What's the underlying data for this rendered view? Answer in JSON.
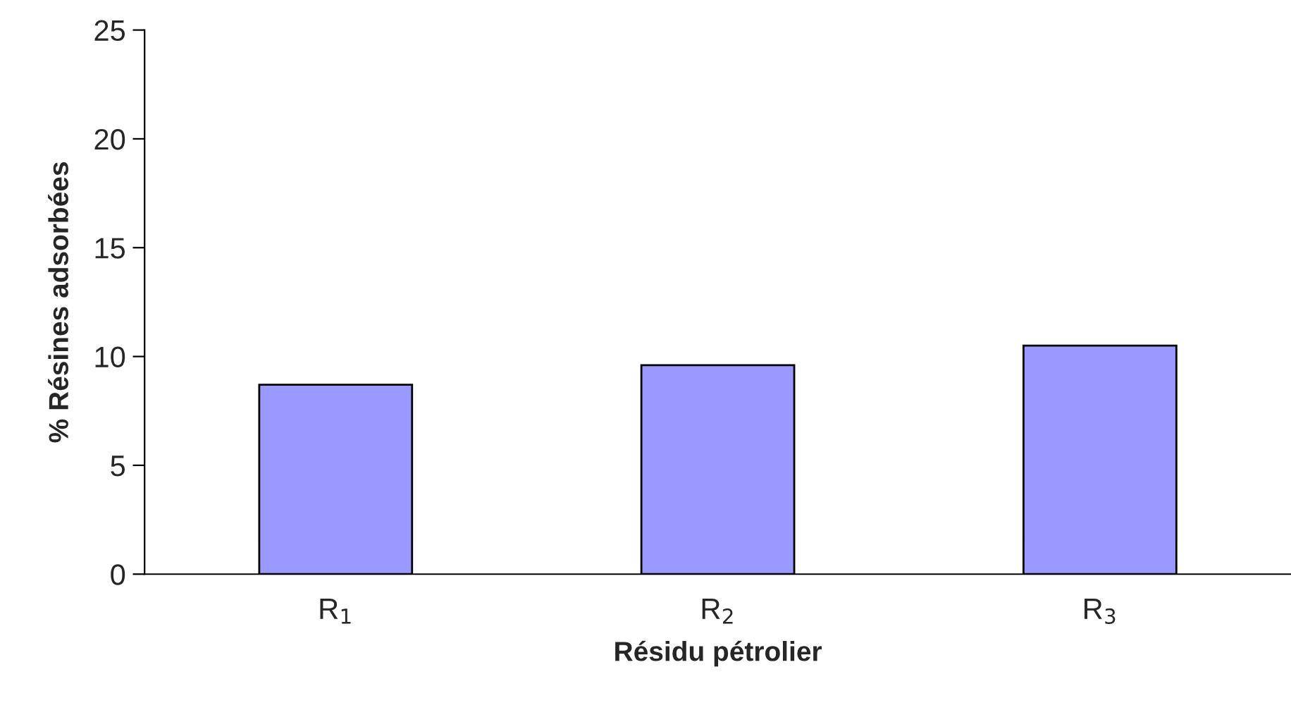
{
  "chart_data": {
    "type": "bar",
    "xlabel": "Résidu pétrolier",
    "ylabel": "% Résines adsorbées",
    "categories": [
      "R$_{1}$",
      "R$_{2}$",
      "R$_{3}$"
    ],
    "values": [
      8.7,
      9.6,
      10.5
    ],
    "color": "#9999ff",
    "ylim": [
      0,
      25
    ],
    "yticks": [
      0,
      5,
      10,
      15,
      20,
      25
    ],
    "grid": false,
    "legend": false
  }
}
